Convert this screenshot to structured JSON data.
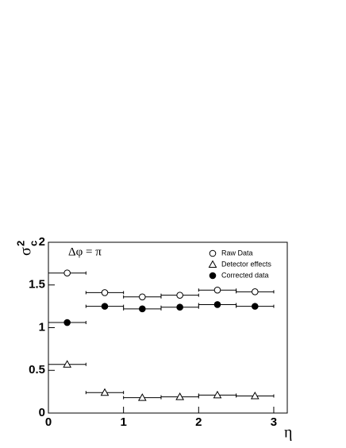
{
  "chart_data": {
    "type": "scatter",
    "ylabel": {
      "symbol": "σ",
      "superscript": "2",
      "subscript": "c"
    },
    "xlabel": "η",
    "annotation": "Δφ = π",
    "x": [
      0.25,
      0.75,
      1.25,
      1.75,
      2.25,
      2.75
    ],
    "xerr": [
      0.25,
      0.25,
      0.25,
      0.25,
      0.25,
      0.25
    ],
    "series": [
      {
        "name": "Raw Data",
        "marker": "open-circle",
        "color": "#000000",
        "values": [
          1.64,
          1.41,
          1.36,
          1.38,
          1.44,
          1.42
        ]
      },
      {
        "name": "Detector effects",
        "marker": "open-triangle",
        "color": "#000000",
        "values": [
          0.57,
          0.24,
          0.18,
          0.19,
          0.21,
          0.2
        ]
      },
      {
        "name": "Corrected data",
        "marker": "filled-circle",
        "color": "#000000",
        "values": [
          1.06,
          1.25,
          1.22,
          1.24,
          1.27,
          1.25
        ]
      }
    ],
    "xlim": [
      0,
      3.18
    ],
    "ylim": [
      0,
      2
    ],
    "xticks": [
      0,
      1,
      2,
      3
    ],
    "yticks": [
      0,
      0.5,
      1,
      1.5,
      2
    ],
    "legend": "top-right"
  }
}
